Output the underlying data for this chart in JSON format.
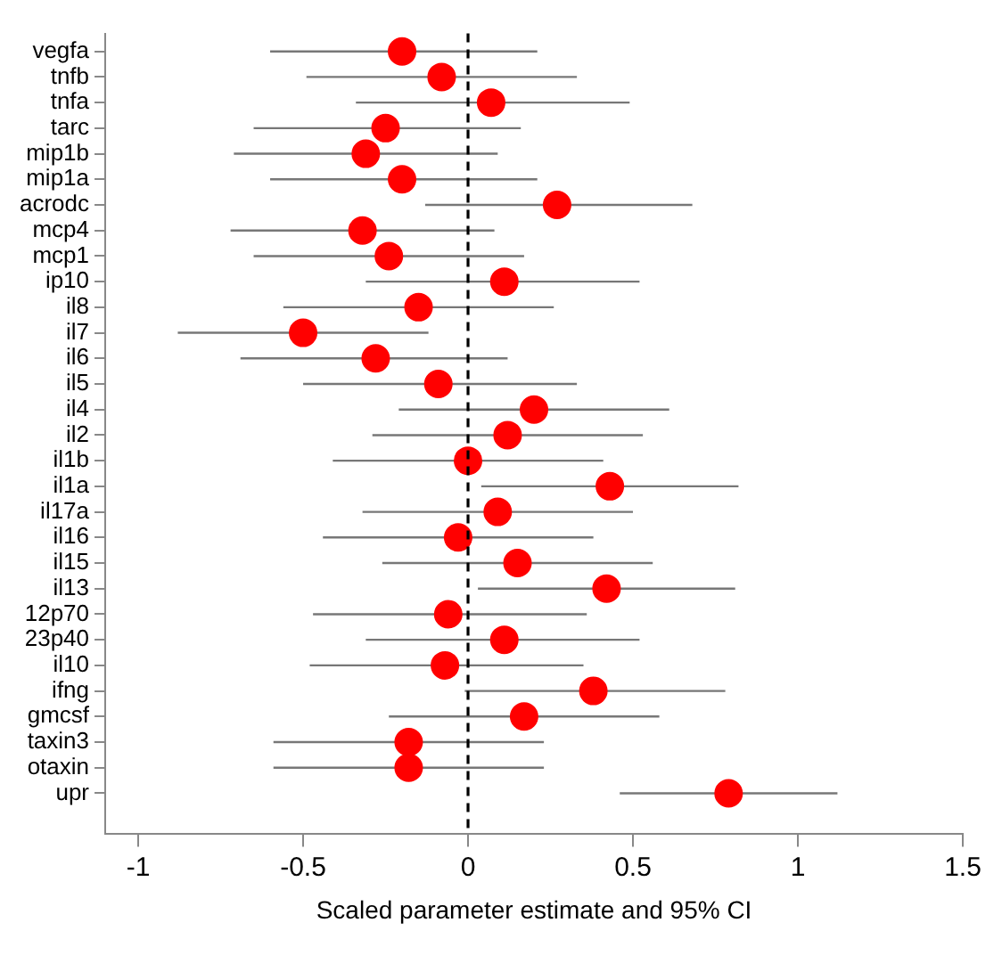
{
  "chart_data": {
    "type": "scatter",
    "orientation": "horizontal",
    "xlabel": "Scaled parameter estimate and 95% CI",
    "categories": [
      "vegfa",
      "tnfb",
      "tnfa",
      "tarc",
      "mip1b",
      "mip1a",
      "acrodc",
      "mcp4",
      "mcp1",
      "ip10",
      "il8",
      "il7",
      "il6",
      "il5",
      "il4",
      "il2",
      "il1b",
      "il1a",
      "il17a",
      "il16",
      "il15",
      "il13",
      "12p70",
      "23p40",
      "il10",
      "ifng",
      "gmcsf",
      "taxin3",
      "otaxin",
      "upr"
    ],
    "values": [
      -0.2,
      -0.08,
      0.07,
      -0.25,
      -0.31,
      -0.2,
      0.27,
      -0.32,
      -0.24,
      0.11,
      -0.15,
      -0.5,
      -0.28,
      -0.09,
      0.2,
      0.12,
      0.0,
      0.43,
      0.09,
      -0.03,
      0.15,
      0.42,
      -0.06,
      0.11,
      -0.07,
      0.38,
      0.17,
      -0.18,
      -0.18,
      0.79
    ],
    "errors": [
      [
        -0.6,
        0.21
      ],
      [
        -0.49,
        0.33
      ],
      [
        -0.34,
        0.49
      ],
      [
        -0.65,
        0.16
      ],
      [
        -0.71,
        0.09
      ],
      [
        -0.6,
        0.21
      ],
      [
        -0.13,
        0.68
      ],
      [
        -0.72,
        0.08
      ],
      [
        -0.65,
        0.17
      ],
      [
        -0.31,
        0.52
      ],
      [
        -0.56,
        0.26
      ],
      [
        -0.88,
        -0.12
      ],
      [
        -0.69,
        0.12
      ],
      [
        -0.5,
        0.33
      ],
      [
        -0.21,
        0.61
      ],
      [
        -0.29,
        0.53
      ],
      [
        -0.41,
        0.41
      ],
      [
        0.04,
        0.82
      ],
      [
        -0.32,
        0.5
      ],
      [
        -0.44,
        0.38
      ],
      [
        -0.26,
        0.56
      ],
      [
        0.03,
        0.81
      ],
      [
        -0.47,
        0.36
      ],
      [
        -0.31,
        0.52
      ],
      [
        -0.48,
        0.35
      ],
      [
        -0.01,
        0.78
      ],
      [
        -0.24,
        0.58
      ],
      [
        -0.59,
        0.23
      ],
      [
        -0.59,
        0.23
      ],
      [
        0.46,
        1.12
      ]
    ],
    "color": "#ff0000",
    "xlim": [
      -1.1,
      1.5
    ],
    "xticks": [
      -1,
      -0.5,
      0,
      0.5,
      1,
      1.5
    ],
    "ref_lines": [
      {
        "axis": "x",
        "value": 0,
        "line_style": "dashed"
      }
    ],
    "marker": "circle",
    "grid": false,
    "legend": false
  }
}
